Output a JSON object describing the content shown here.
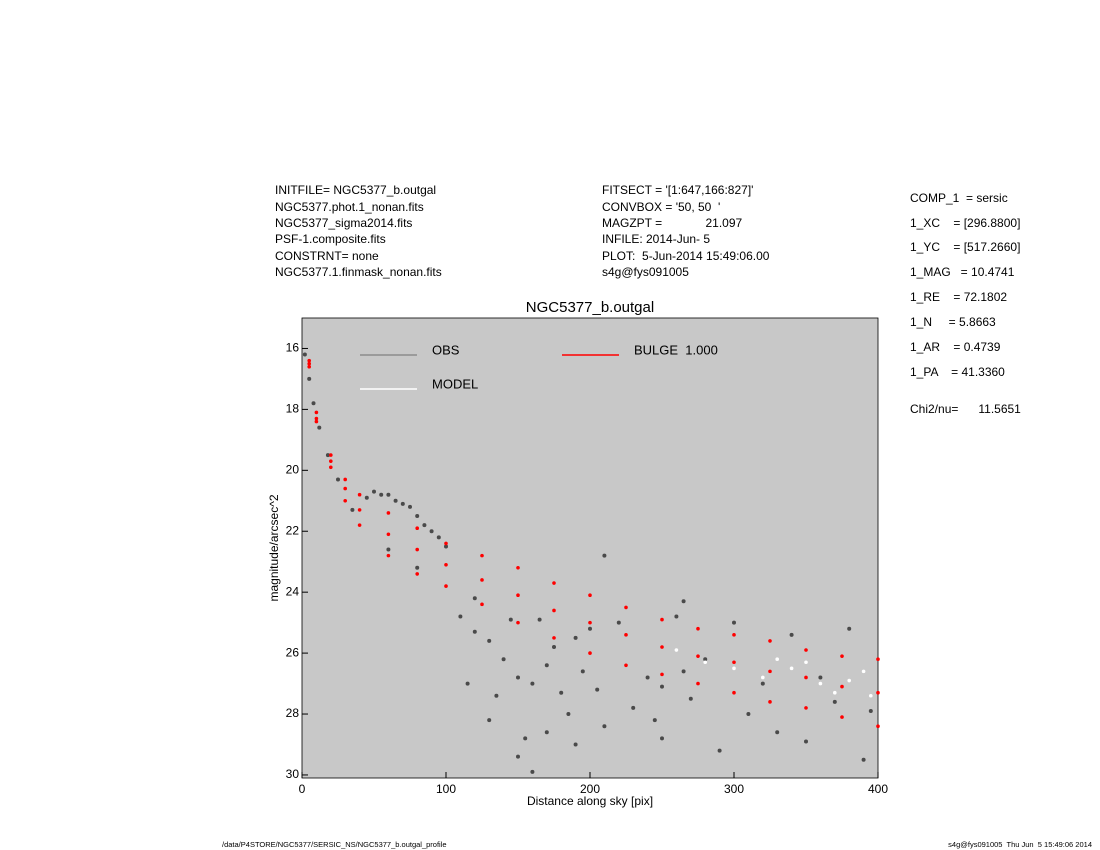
{
  "header": {
    "left": [
      "INITFILE= NGC5377_b.outgal",
      "NGC5377.phot.1_nonan.fits",
      "NGC5377_sigma2014.fits",
      "PSF-1.composite.fits",
      "CONSTRNT= none",
      "NGC5377.1.finmask_nonan.fits"
    ],
    "middle": [
      "FITSECT = '[1:647,166:827]'",
      "CONVBOX = '50, 50  '",
      "MAGZPT =             21.097",
      "INFILE: 2014-Jun- 5",
      "PLOT:  5-Jun-2014 15:49:06.00",
      "s4g@fys091005"
    ],
    "right": [
      "COMP_1  = sersic",
      "1_XC    = [296.8800]",
      "1_YC    = [517.2660]",
      "1_MAG   = 10.4741",
      "1_RE    = 72.1802",
      "1_N     = 5.8663",
      "1_AR    = 0.4739",
      "1_PA    = 41.3360",
      "Chi2/nu=      11.5651"
    ]
  },
  "footer": {
    "left": "/data/P4STORE/NGC5377/SERSIC_NS/NGC5377_b.outgal_profile",
    "right": "s4g@fys091005  Thu Jun  5 15:49:06 2014"
  },
  "chart_data": {
    "type": "scatter",
    "title": "NGC5377_b.outgal",
    "x_label": "Distance along sky [pix]",
    "y_label": "magnitude/arcsec^2",
    "xlim": [
      0,
      400
    ],
    "xticks": [
      0,
      100,
      200,
      300,
      400
    ],
    "ylim": [
      15,
      30.1
    ],
    "yticks": [
      16,
      18,
      20,
      22,
      24,
      26,
      28,
      30
    ],
    "y_inverted": true,
    "background": "#c8c8c8",
    "series": [
      {
        "name": "OBS",
        "color": "#4a4a4a",
        "legend_color": "#8c8c8c",
        "x": [
          2,
          5,
          8,
          12,
          18,
          25,
          35,
          45,
          50,
          55,
          60,
          65,
          70,
          75,
          80,
          85,
          90,
          95,
          100,
          110,
          120,
          130,
          140,
          150,
          160,
          170,
          180,
          190,
          200,
          220,
          240,
          260,
          280,
          300,
          320,
          340,
          360,
          380,
          395,
          130,
          150,
          170,
          190,
          210,
          230,
          250,
          270,
          290,
          310,
          330,
          350,
          370,
          390,
          115,
          135,
          155,
          165,
          175,
          185,
          195,
          205,
          245,
          265,
          265,
          60,
          80,
          120,
          145,
          210,
          160,
          250
        ],
        "values": [
          16.2,
          17.0,
          17.8,
          18.6,
          19.5,
          20.3,
          21.3,
          20.9,
          20.7,
          20.8,
          20.8,
          21.0,
          21.1,
          21.2,
          21.5,
          21.8,
          22.0,
          22.2,
          22.5,
          24.8,
          25.3,
          25.6,
          26.2,
          26.8,
          27.0,
          26.4,
          27.3,
          25.5,
          25.2,
          25.0,
          26.8,
          24.8,
          26.2,
          25.0,
          27.0,
          25.4,
          26.8,
          25.2,
          27.9,
          28.2,
          29.4,
          28.6,
          29.0,
          28.4,
          27.8,
          28.8,
          27.5,
          29.2,
          28.0,
          28.6,
          28.9,
          27.6,
          29.5,
          27.0,
          27.4,
          28.8,
          24.9,
          25.8,
          28.0,
          26.6,
          27.2,
          28.2,
          26.6,
          24.3,
          22.6,
          23.2,
          24.2,
          24.9,
          22.8,
          29.9,
          27.1
        ]
      },
      {
        "name": "MODEL",
        "color": "#ffffff",
        "legend_color": "#ffffff",
        "x": [
          260,
          280,
          300,
          320,
          340,
          360,
          380,
          395,
          350,
          370,
          330,
          390
        ],
        "values": [
          25.9,
          26.3,
          26.5,
          26.8,
          26.5,
          27.0,
          26.9,
          27.4,
          26.3,
          27.3,
          26.2,
          26.6
        ]
      },
      {
        "name": "BULGE  1.000",
        "color": "#ff0000",
        "legend_color": "#ff0000",
        "x": [
          5,
          10,
          20,
          30,
          40,
          60,
          80,
          100,
          125,
          150,
          175,
          200,
          225,
          250,
          275,
          300,
          325,
          350,
          375,
          400,
          5,
          10,
          20,
          30,
          40,
          60,
          80,
          100,
          125,
          150,
          175,
          200,
          225,
          250,
          275,
          300,
          325,
          350,
          375,
          400,
          5,
          10,
          20,
          30,
          40,
          60,
          80,
          100,
          125,
          150,
          175,
          200,
          225,
          250,
          275,
          300,
          325,
          350,
          375,
          400
        ],
        "values": [
          16.4,
          18.1,
          19.5,
          20.3,
          20.8,
          21.4,
          21.9,
          22.4,
          22.8,
          23.2,
          23.7,
          24.1,
          24.5,
          24.9,
          25.2,
          25.4,
          25.6,
          25.9,
          26.1,
          26.2,
          16.6,
          18.4,
          19.9,
          21.0,
          21.8,
          22.8,
          23.4,
          23.8,
          24.4,
          25.0,
          25.5,
          26.0,
          26.4,
          26.7,
          27.0,
          27.3,
          27.6,
          27.8,
          28.1,
          28.4,
          16.5,
          18.3,
          19.7,
          20.6,
          21.3,
          22.1,
          22.6,
          23.1,
          23.6,
          24.1,
          24.6,
          25.0,
          25.4,
          25.8,
          26.1,
          26.3,
          26.6,
          26.8,
          27.1,
          27.3
        ]
      }
    ]
  }
}
